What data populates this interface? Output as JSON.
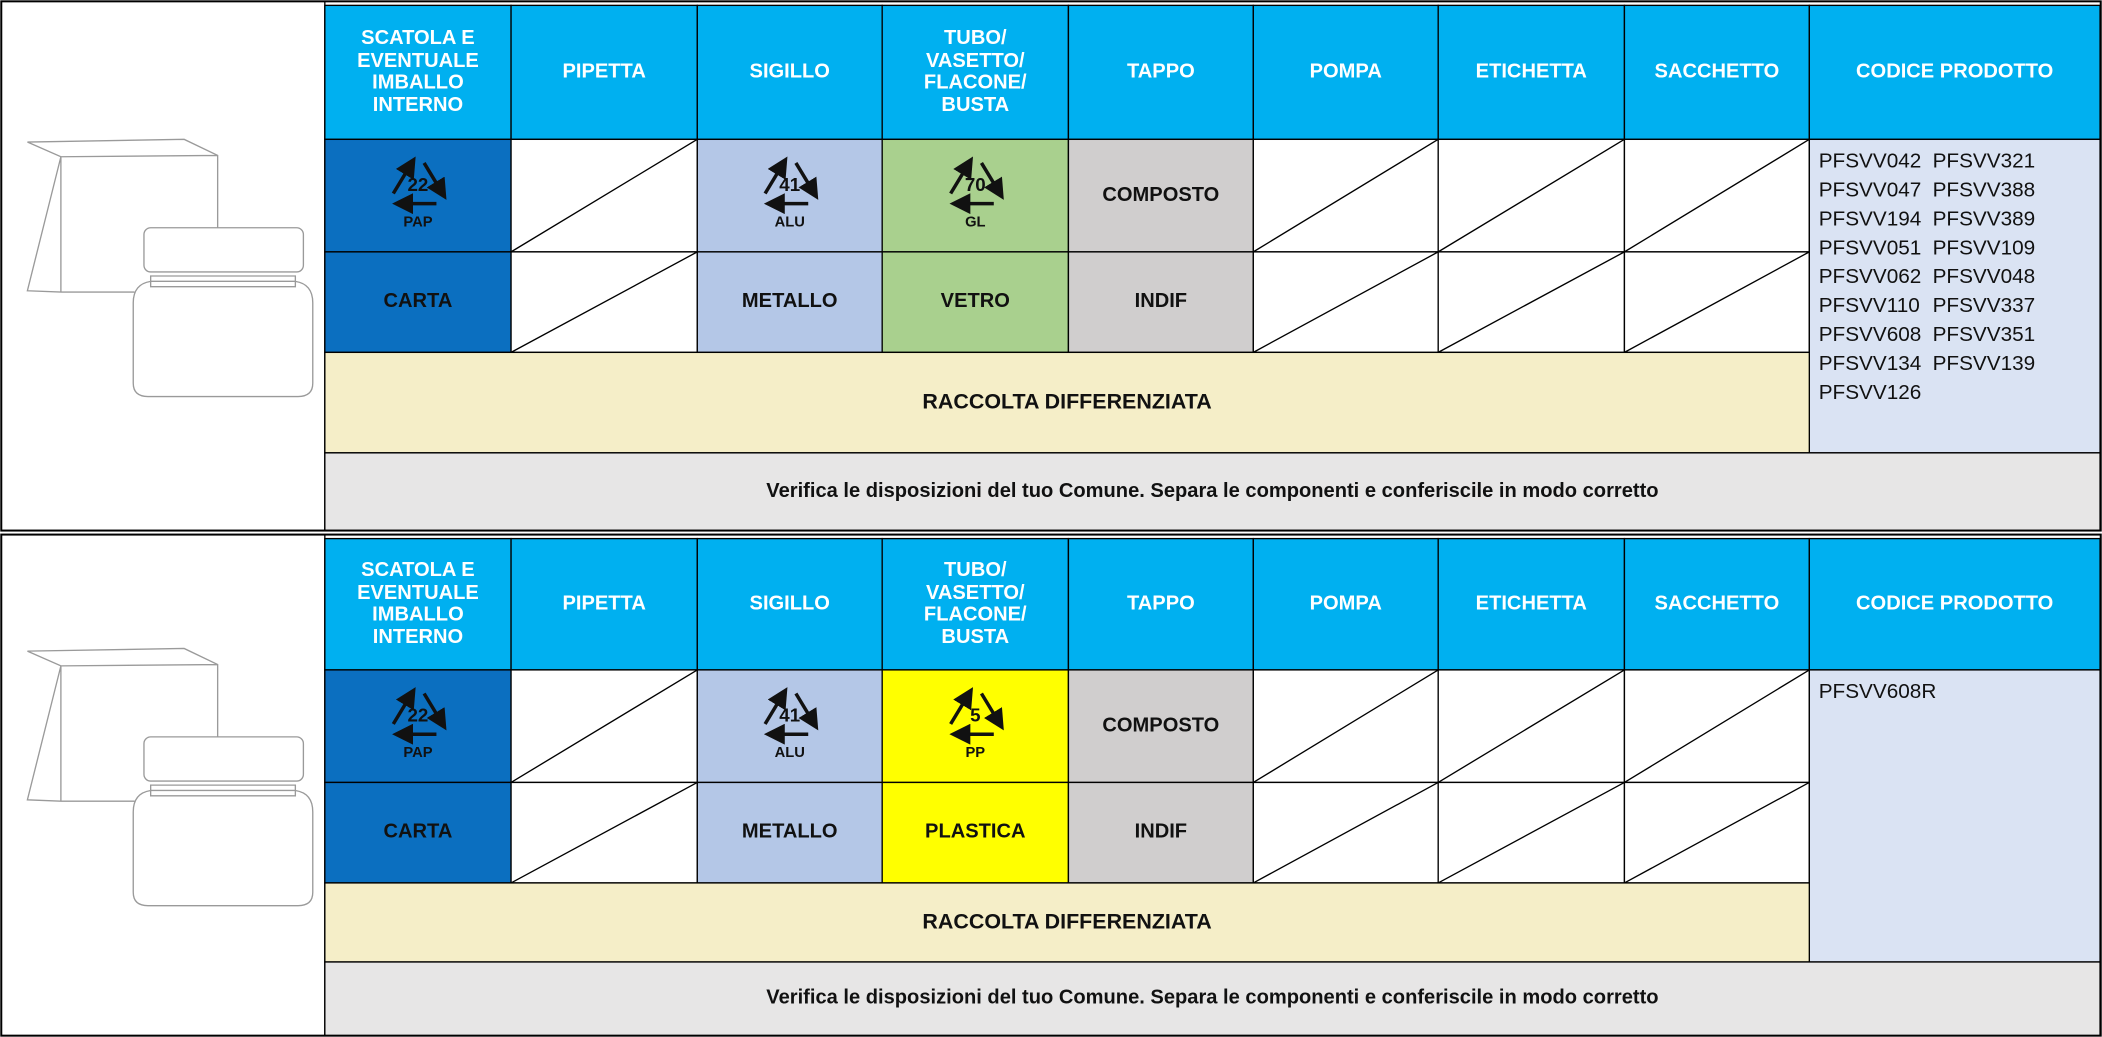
{
  "tables": [
    {
      "components": [
        {
          "header": "SCATOLA E EVENTUALE IMBALLO INTERNO",
          "symbol": {
            "number": "22",
            "code": "PAP"
          },
          "material": "CARTA",
          "color": "#0b6fc0"
        },
        {
          "header": "PIPETTA"
        },
        {
          "header": "SIGILLO",
          "symbol": {
            "number": "41",
            "code": "ALU"
          },
          "material": "METALLO",
          "color": "#b4c7e7"
        },
        {
          "header": "TUBO/ VASETTO/ FLACONE/ BUSTA",
          "symbol": {
            "number": "70",
            "code": "GL"
          },
          "material": "VETRO",
          "color": "#a9d08e"
        },
        {
          "header": "TAPPO",
          "identification": "COMPOSTO",
          "material": "INDIF",
          "color": "#d0cece"
        },
        {
          "header": "POMPA"
        },
        {
          "header": "ETICHETTA"
        },
        {
          "header": "SACCHETTO"
        }
      ],
      "codes_header": "CODICE PRODOTTO",
      "codes": [
        "PFSVV042",
        "PFSVV047",
        "PFSVV194",
        "PFSVV051",
        "PFSVV062",
        "PFSVV110",
        "PFSVV608",
        "PFSVV134",
        "PFSVV126",
        "PFSVV321",
        "PFSVV388",
        "PFSVV389",
        "PFSVV109",
        "PFSVV048",
        "PFSVV337",
        "PFSVV351",
        "PFSVV139"
      ],
      "collection": "RACCOLTA DIFFERENZIATA",
      "note": "Verifica le disposizioni del tuo Comune. Separa le componenti e conferiscile in modo corretto"
    },
    {
      "components": [
        {
          "header": "SCATOLA E EVENTUALE IMBALLO INTERNO",
          "symbol": {
            "number": "22",
            "code": "PAP"
          },
          "material": "CARTA",
          "color": "#0b6fc0"
        },
        {
          "header": "PIPETTA"
        },
        {
          "header": "SIGILLO",
          "symbol": {
            "number": "41",
            "code": "ALU"
          },
          "material": "METALLO",
          "color": "#b4c7e7"
        },
        {
          "header": "TUBO/ VASETTO/ FLACONE/ BUSTA",
          "symbol": {
            "number": "5",
            "code": "PP"
          },
          "material": "PLASTICA",
          "color": "#ffff00"
        },
        {
          "header": "TAPPO",
          "identification": "COMPOSTO",
          "material": "INDIF",
          "color": "#d0cece"
        },
        {
          "header": "POMPA"
        },
        {
          "header": "ETICHETTA"
        },
        {
          "header": "SACCHETTO"
        }
      ],
      "codes_header": "CODICE PRODOTTO",
      "codes": [
        "PFSVV608R"
      ],
      "collection": "RACCOLTA DIFFERENZIATA",
      "note": "Verifica le disposizioni del tuo Comune. Separa le componenti e conferiscile in modo corretto"
    }
  ]
}
